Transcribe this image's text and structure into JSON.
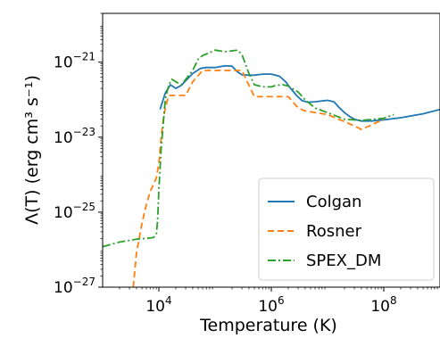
{
  "chart_data": {
    "type": "line",
    "title": "",
    "xlabel": "Temperature (K)",
    "ylabel": "Λ(T) (erg cm³ s⁻¹)",
    "x_scale": "log",
    "y_scale": "log",
    "xlim": [
      1000,
      1000000000
    ],
    "ylim": [
      1e-27,
      2e-20
    ],
    "x_ticks": [
      {
        "base": "10",
        "exp": "4",
        "value": 10000
      },
      {
        "base": "10",
        "exp": "6",
        "value": 1000000
      },
      {
        "base": "10",
        "exp": "8",
        "value": 100000000
      }
    ],
    "y_ticks": [
      {
        "base": "10",
        "exp": "−27",
        "value": 1e-27
      },
      {
        "base": "10",
        "exp": "−25",
        "value": 1e-25
      },
      {
        "base": "10",
        "exp": "−23",
        "value": 1e-23
      },
      {
        "base": "10",
        "exp": "−21",
        "value": 1e-21
      }
    ],
    "legend_position": "lower-right",
    "grid": false,
    "series": [
      {
        "name": "Colgan",
        "color": "#1f77b4",
        "dash": "solid",
        "x": [
          10500,
          13000,
          16000,
          20000,
          25000,
          30000,
          40000,
          55000,
          70000,
          100000,
          150000,
          200000,
          250000,
          300000,
          400000,
          500000,
          700000,
          1000000,
          1400000,
          1800000,
          2200000,
          2800000,
          3500000,
          4500000,
          6000000,
          8000000,
          10000000,
          13000000,
          16000000,
          20000000,
          25000000,
          30000000,
          40000000,
          60000000,
          100000000,
          200000000,
          500000000,
          1000000000
        ],
        "y": [
          5.5e-23,
          1.5e-22,
          2.5e-22,
          2e-22,
          2.4e-22,
          3.2e-22,
          5e-22,
          6.8e-22,
          7.2e-22,
          7.2e-22,
          8e-22,
          7.8e-22,
          5.5e-22,
          4.6e-22,
          4.5e-22,
          4.5e-22,
          4.8e-22,
          4.8e-22,
          4.2e-22,
          3e-22,
          2e-22,
          1.3e-22,
          9.5e-23,
          8.5e-23,
          8.8e-23,
          9.3e-23,
          9.6e-23,
          8.8e-23,
          6.2e-23,
          4.5e-23,
          3.5e-23,
          3e-23,
          2.7e-23,
          2.7e-23,
          2.9e-23,
          3.3e-23,
          4.2e-23,
          5.5e-23
        ]
      },
      {
        "name": "Rosner",
        "color": "#ff7f0e",
        "dash": "dashed",
        "x": [
          3500,
          4000,
          5000,
          6000,
          7000,
          8000,
          9000,
          10000,
          11000,
          12000,
          13000,
          15000,
          18000,
          20000,
          30000,
          40000,
          60000,
          80000,
          100000,
          300000,
          500000,
          550000,
          700000,
          1000000,
          2000000,
          3000000,
          4000000,
          10000000,
          30000000,
          40000000,
          100000000
        ],
        "y": [
          1e-27,
          8e-27,
          5e-26,
          1.6e-25,
          3.5e-25,
          5.5e-25,
          8e-25,
          2e-24,
          1e-23,
          3e-23,
          6e-23,
          1.3e-22,
          1.3e-22,
          1.3e-22,
          1.3e-22,
          3e-22,
          6e-22,
          6e-22,
          6e-22,
          6e-22,
          1.2e-22,
          1.2e-22,
          1.2e-22,
          1.2e-22,
          1.2e-22,
          6e-23,
          5e-23,
          4e-23,
          2e-23,
          1.6e-23,
          3e-23
        ]
      },
      {
        "name": "SPEX_DM",
        "color": "#2ca02c",
        "dash": "dashdot",
        "x": [
          1000,
          2000,
          4000,
          6000,
          8000,
          9000,
          9500,
          10000,
          11000,
          13000,
          15000,
          17000,
          20000,
          25000,
          30000,
          40000,
          50000,
          60000,
          80000,
          100000,
          150000,
          200000,
          250000,
          300000,
          400000,
          500000,
          700000,
          1000000,
          1200000,
          1600000,
          2000000,
          3000000,
          4000000,
          6000000,
          10000000,
          20000000,
          40000000,
          100000000,
          150000000
        ],
        "y": [
          1.2e-26,
          1.6e-26,
          1.9e-26,
          2e-26,
          2.1e-26,
          2.5e-26,
          6e-26,
          4e-25,
          5e-24,
          1e-22,
          2.5e-22,
          3.5e-22,
          3e-22,
          2.5e-22,
          3.5e-22,
          6e-22,
          1.2e-21,
          1.5e-21,
          1.8e-21,
          2.1e-21,
          1.9e-21,
          2e-21,
          2.1e-21,
          1.6e-21,
          5e-22,
          2.5e-22,
          2.2e-22,
          2.2e-22,
          2.4e-22,
          2.5e-22,
          2.3e-22,
          1.6e-22,
          1e-22,
          6e-23,
          4.5e-23,
          3e-23,
          2.8e-23,
          3.2e-23,
          4e-23
        ]
      }
    ]
  }
}
